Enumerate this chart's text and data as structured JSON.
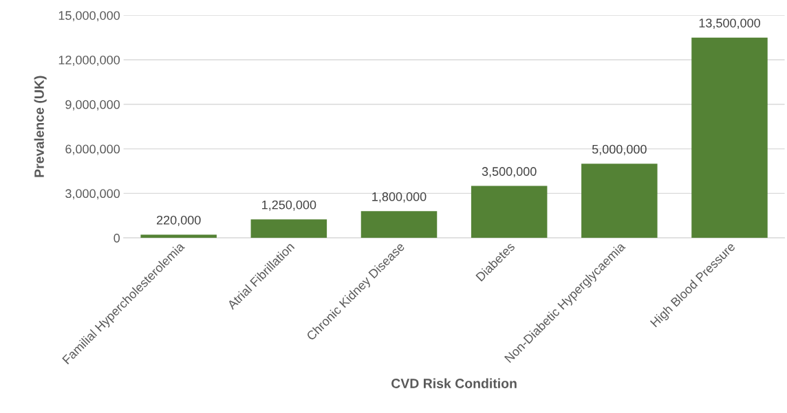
{
  "chart_data": {
    "type": "bar",
    "categories": [
      "Familial Hypercholesterolemia",
      "Atrial Fibrillation",
      "Chronic Kidney Disease",
      "Diabetes",
      "Non-Diabetic Hyperglycaemia",
      "High Blood Pressure"
    ],
    "values": [
      220000,
      1250000,
      1800000,
      3500000,
      5000000,
      13500000
    ],
    "value_labels": [
      "220,000",
      "1,250,000",
      "1,800,000",
      "3,500,000",
      "5,000,000",
      "13,500,000"
    ],
    "color": "#548235",
    "xlabel": "CVD Risk Condition",
    "ylabel": "Prevalence (UK)",
    "ylim": [
      0,
      15000000
    ],
    "yticks": [
      {
        "value": 0,
        "label": "0"
      },
      {
        "value": 3000000,
        "label": "3,000,000"
      },
      {
        "value": 6000000,
        "label": "6,000,000"
      },
      {
        "value": 9000000,
        "label": "9,000,000"
      },
      {
        "value": 12000000,
        "label": "12,000,000"
      },
      {
        "value": 15000000,
        "label": "15,000,000"
      }
    ],
    "grid": "y",
    "legend": false
  }
}
